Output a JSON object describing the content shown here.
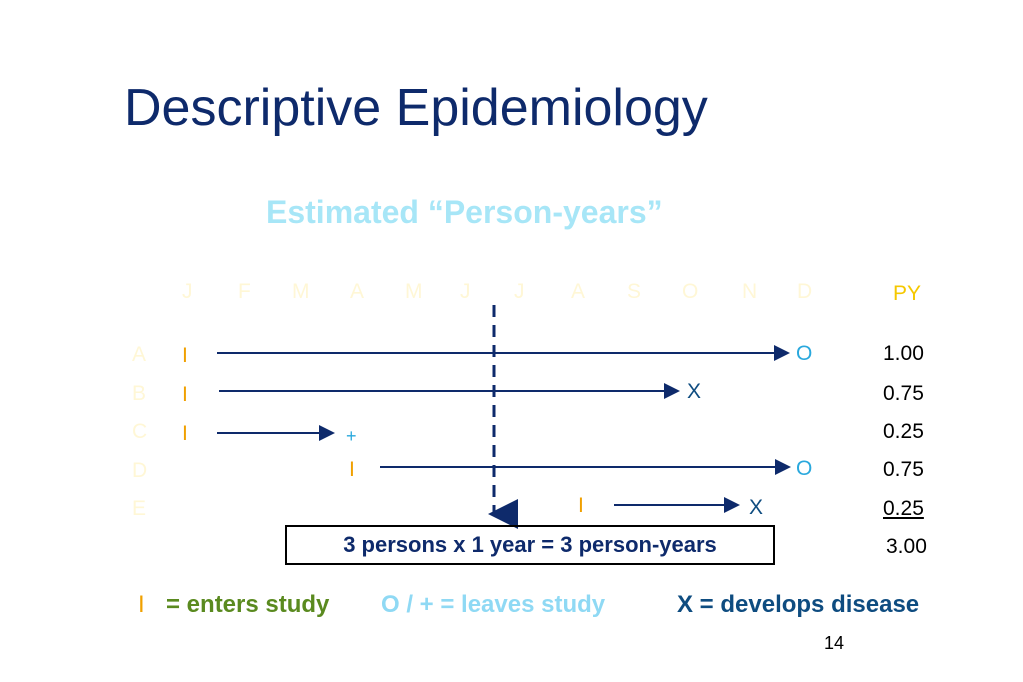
{
  "title": "Descriptive Epidemiology",
  "subtitle": "Estimated “Person-years”",
  "months": [
    "J",
    "F",
    "M",
    "A",
    "M",
    "J",
    "J",
    "A",
    "S",
    "O",
    "N",
    "D"
  ],
  "py_header": "PY",
  "rows": [
    {
      "label": "A",
      "enter": "I",
      "exit": "O",
      "py": "1.00"
    },
    {
      "label": "B",
      "enter": "I",
      "exit": "X",
      "py": "0.75"
    },
    {
      "label": "C",
      "enter": "I",
      "exit": "+",
      "py": "0.25"
    },
    {
      "label": "D",
      "enter": "I",
      "exit": "O",
      "py": "0.75"
    },
    {
      "label": "E",
      "enter": "I",
      "exit": "X",
      "py": "0.25"
    }
  ],
  "py_total": "3.00",
  "summary": "3 persons x 1 year = 3 person-years",
  "legend": {
    "enter_symbol": "I",
    "enter_text": "= enters study",
    "leave_text": "O / + = leaves study",
    "disease_text": "X = develops disease"
  },
  "page_number": "14",
  "colors": {
    "title": "#0e2a6b",
    "subtitle": "#a7e6f7",
    "enter": "#f0a000",
    "leave": "#29a8dd",
    "disease": "#0e4c80",
    "line": "#0e2a6b"
  }
}
